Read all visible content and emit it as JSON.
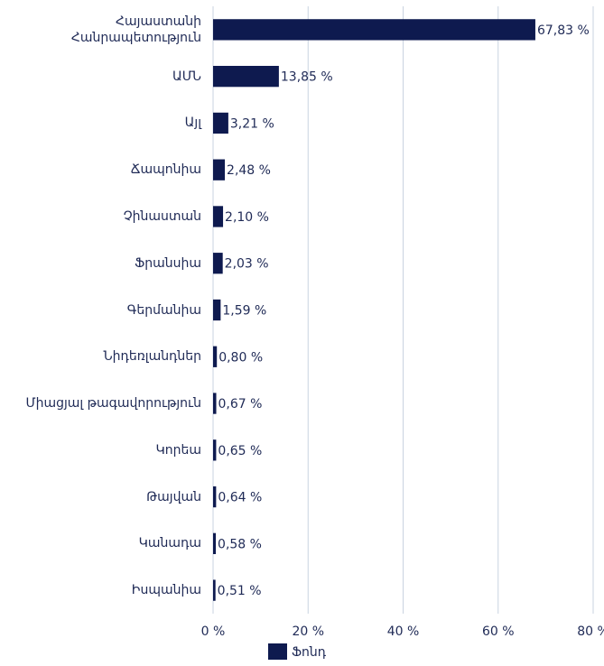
{
  "chart_data": {
    "type": "hbar",
    "categories": [
      "Հայաստանի\nՀանրապետություն",
      "ԱՄՆ",
      "Այլ",
      "Ճապոնիա",
      "Չինաստան",
      "Ֆրանսիա",
      "Գերմանիա",
      "Նիդեռլանդներ",
      "Միացյալ թագավորություն",
      "Կորեա",
      "Թայվան",
      "Կանադա",
      "Իսպանիա"
    ],
    "series": [
      {
        "name": "Ֆոնդ",
        "color": "#0e1a4f",
        "values": [
          67.83,
          13.85,
          3.21,
          2.48,
          2.1,
          2.03,
          1.59,
          0.8,
          0.67,
          0.65,
          0.64,
          0.58,
          0.51
        ],
        "value_labels": [
          "67,83 %",
          "13,85 %",
          "3,21 %",
          "2,48 %",
          "2,10 %",
          "2,03 %",
          "1,59 %",
          "0,80 %",
          "0,67 %",
          "0,65 %",
          "0,64 %",
          "0,58 %",
          "0,51 %"
        ]
      }
    ],
    "xlim": [
      0,
      80
    ],
    "xticks": [
      {
        "value": 0,
        "label": "0 %"
      },
      {
        "value": 20,
        "label": "20 %"
      },
      {
        "value": 40,
        "label": "40 %"
      },
      {
        "value": 60,
        "label": "60 %"
      },
      {
        "value": 80,
        "label": "80 %"
      }
    ],
    "grid": true,
    "legend": "bottom"
  }
}
